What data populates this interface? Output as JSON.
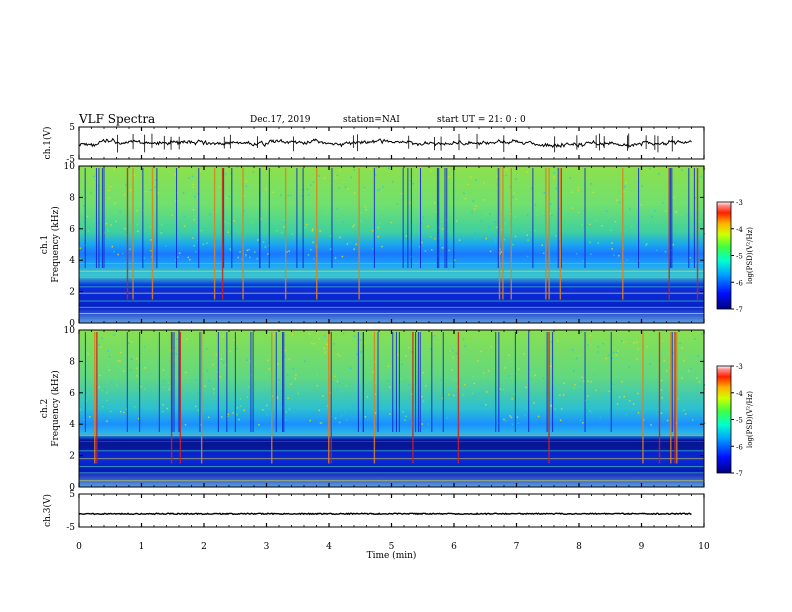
{
  "header": {
    "title": "VLF Spectra",
    "date": "Dec.17, 2019",
    "station": "station=NAI",
    "start": "start UT =  21: 0  : 0"
  },
  "colors": {
    "spectrogram_ch1_top": "#3ad08a",
    "spectrogram_low": "#0a22d6",
    "timeseries": "#000000"
  },
  "chart_data": [
    {
      "type": "line",
      "panel": "ch.1 waveform",
      "ylabel": "ch.1(V)",
      "ylim": [
        -5,
        5
      ],
      "xlim": [
        0,
        10
      ],
      "yticks": [
        "5",
        "-5"
      ],
      "series": [
        {
          "values_approx": "fluctuating trace near 0 V, amplitude about ±1 V"
        }
      ]
    },
    {
      "type": "heatmap",
      "panel": "ch.1 spectrogram",
      "ylabel_line1": "ch.1",
      "ylabel_line2": "Frequency (kHz)",
      "ylim": [
        0,
        10
      ],
      "yticks": [
        "0",
        "2",
        "4",
        "6",
        "8",
        "10"
      ],
      "xlim": [
        0,
        10
      ],
      "colorbar": {
        "label": "log(PSD)(V²/Hz)",
        "range": [
          -7,
          -3
        ],
        "ticks": [
          "-3",
          "-4",
          "-5",
          "-6",
          "-7"
        ]
      },
      "features": {
        "low_band_top_khz": 2.3,
        "mid_band_top_khz": 3.8,
        "sferic_count_approx": 55
      }
    },
    {
      "type": "heatmap",
      "panel": "ch.2 spectrogram",
      "ylabel_line1": "ch.2",
      "ylabel_line2": "Frequency (kHz)",
      "ylim": [
        0,
        10
      ],
      "yticks": [
        "0",
        "2",
        "4",
        "6",
        "8",
        "10"
      ],
      "xlim": [
        0,
        10
      ],
      "colorbar": {
        "label": "log(PSD)(V²/Hz)",
        "range": [
          -7,
          -3
        ],
        "ticks": [
          "-3",
          "-4",
          "-5",
          "-6",
          "-7"
        ]
      },
      "features": {
        "low_band_top_khz": 3.0,
        "mid_band_top_khz": 3.6,
        "sferic_count_approx": 55
      }
    },
    {
      "type": "line",
      "panel": "ch.3 waveform",
      "ylabel": "ch.3(V)",
      "ylim": [
        -5,
        5
      ],
      "xlim": [
        0,
        10
      ],
      "yticks": [
        "5",
        "-5"
      ],
      "series": [
        {
          "values_approx": "nearly constant near -1 V"
        }
      ]
    }
  ],
  "xaxis": {
    "label": "Time (min)",
    "ticks": [
      "0",
      "1",
      "2",
      "3",
      "4",
      "5",
      "6",
      "7",
      "8",
      "9",
      "10"
    ]
  }
}
